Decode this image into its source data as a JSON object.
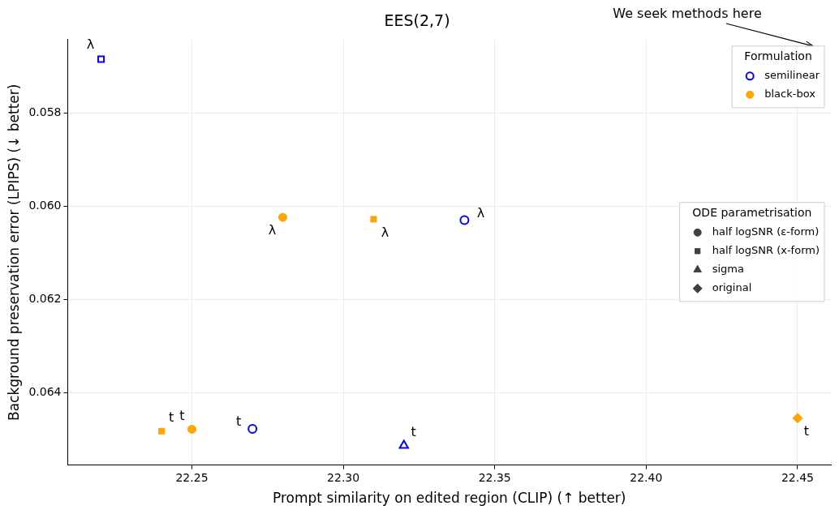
{
  "chart_data": {
    "type": "scatter",
    "title": "EES(2,7)",
    "xlabel": "Prompt similarity on edited region (CLIP) (↑ better)",
    "ylabel": "Background preservation error (LPIPS) (↓ better)",
    "xlim": [
      22.209,
      22.461
    ],
    "ylim": [
      0.06555,
      0.05643
    ],
    "xticks": [
      22.25,
      {
        "value": 22.3,
        "label": "22.30"
      },
      22.35,
      {
        "value": 22.4,
        "label": "22.40"
      },
      22.45
    ],
    "yticks": [
      0.058,
      {
        "value": 0.06,
        "label": "0.060"
      },
      0.062,
      0.064
    ],
    "grid": true,
    "legend": "top right",
    "legend_title": "Formulation",
    "series": [
      {
        "color": "#0000ff",
        "marker": "square",
        "x": [
          22.22
        ],
        "values": [
          0.05685
        ]
      },
      {
        "color": "#0000ff",
        "marker": "circle",
        "x": [
          22.34,
          22.27
        ],
        "values": [
          0.0603,
          0.06477
        ]
      },
      {
        "color": "#0000ff",
        "marker": "triangle",
        "x": [
          22.32
        ],
        "values": [
          0.06513
        ]
      },
      {
        "color": "#ffa500",
        "marker": "circle",
        "x": [
          22.28,
          22.25
        ],
        "values": [
          0.06024,
          0.06478
        ]
      },
      {
        "color": "#ffa500",
        "marker": "square",
        "x": [
          22.31,
          22.24
        ],
        "values": [
          0.06028,
          0.06482
        ]
      },
      {
        "color": "#ffa500",
        "marker": "diamond",
        "x": [
          22.45
        ],
        "values": [
          0.06454
        ]
      },
      {
        "name": "semilinear",
        "color": "#0000ff",
        "marker": "circle"
      },
      {
        "name": "black-box",
        "color": "#ffa500",
        "marker": "circle"
      },
      {
        "name": "half logSNR (ε-form)",
        "color": "#404040",
        "marker": "circle"
      },
      {
        "name": "half logSNR (x-form)",
        "color": "#404040",
        "marker": "square"
      },
      {
        "name": "sigma",
        "color": "#404040",
        "marker": "triangle"
      },
      {
        "name": "original",
        "color": "#404040",
        "marker": "diamond"
      }
    ],
    "annotations": [
      {
        "text": "λ",
        "x": 22.22,
        "y": 0.05685
      },
      {
        "text": "λ",
        "x": 22.34,
        "y": 0.0603
      },
      {
        "text": "t",
        "x": 22.27,
        "y": 0.06477
      },
      {
        "text": "t",
        "x": 22.32,
        "y": 0.06513
      },
      {
        "text": "λ",
        "x": 22.28,
        "y": 0.06024
      },
      {
        "text": "λ",
        "x": 22.31,
        "y": 0.06028
      },
      {
        "text": "t",
        "x": 22.24,
        "y": 0.06482
      },
      {
        "text": "t",
        "x": 22.25,
        "y": 0.06478
      },
      {
        "text": "t",
        "x": 22.45,
        "y": 0.06454
      },
      "We seek methods here",
      "ODE parametrisation"
    ]
  }
}
